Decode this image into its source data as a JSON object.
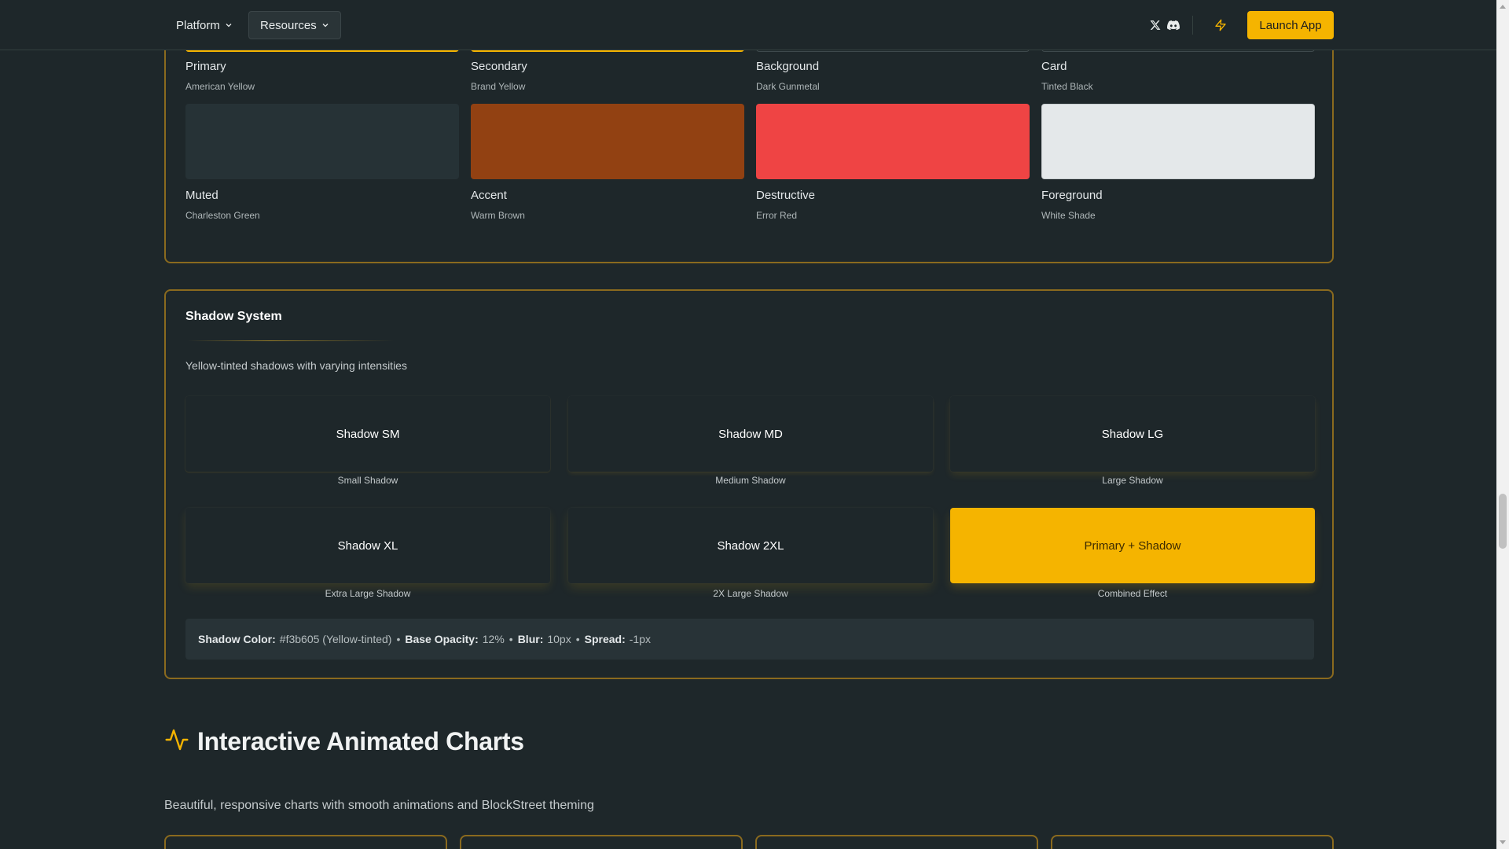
{
  "nav": {
    "platform_label": "Platform",
    "resources_label": "Resources",
    "launch_label": "Launch App",
    "icons": [
      "x-logo-icon",
      "discord-icon",
      "lightning-icon",
      "chevron-down-icon"
    ]
  },
  "palette": {
    "swatches": [
      {
        "name": "Primary",
        "sub": "American Yellow",
        "color": "#f5b400"
      },
      {
        "name": "Secondary",
        "sub": "Brand Yellow",
        "color": "#f5b400"
      },
      {
        "name": "Background",
        "sub": "Dark Gunmetal",
        "color": "#1e272a"
      },
      {
        "name": "Card",
        "sub": "Tinted Black",
        "color": "#1e272a"
      },
      {
        "name": "Muted",
        "sub": "Charleston Green",
        "color": "#263236"
      },
      {
        "name": "Accent",
        "sub": "Warm Brown",
        "color": "#924112"
      },
      {
        "name": "Destructive",
        "sub": "Error Red",
        "color": "#ef4444"
      },
      {
        "name": "Foreground",
        "sub": "White Shade",
        "color": "#e4e8ea"
      }
    ]
  },
  "shadow": {
    "title": "Shadow System",
    "description": "Yellow-tinted shadows with varying intensities",
    "boxes": [
      {
        "label": "Shadow SM",
        "caption": "Small Shadow"
      },
      {
        "label": "Shadow MD",
        "caption": "Medium Shadow"
      },
      {
        "label": "Shadow LG",
        "caption": "Large Shadow"
      },
      {
        "label": "Shadow XL",
        "caption": "Extra Large Shadow"
      },
      {
        "label": "Shadow 2XL",
        "caption": "2X Large Shadow"
      },
      {
        "label": "Primary + Shadow",
        "caption": "Combined Effect"
      }
    ],
    "info": {
      "color_label": "Shadow Color:",
      "color_value": "#f3b605 (Yellow-tinted)",
      "opacity_label": "Base Opacity:",
      "opacity_value": "12%",
      "blur_label": "Blur:",
      "blur_value": "10px",
      "spread_label": "Spread:",
      "spread_value": "-1px",
      "separator": "•"
    }
  },
  "charts": {
    "title": "Interactive Animated Charts",
    "description": "Beautiful, responsive charts with smooth animations and BlockStreet theming"
  },
  "colors": {
    "accent": "#f5b400",
    "border": "#8a6a1e",
    "background": "#1e272a"
  }
}
